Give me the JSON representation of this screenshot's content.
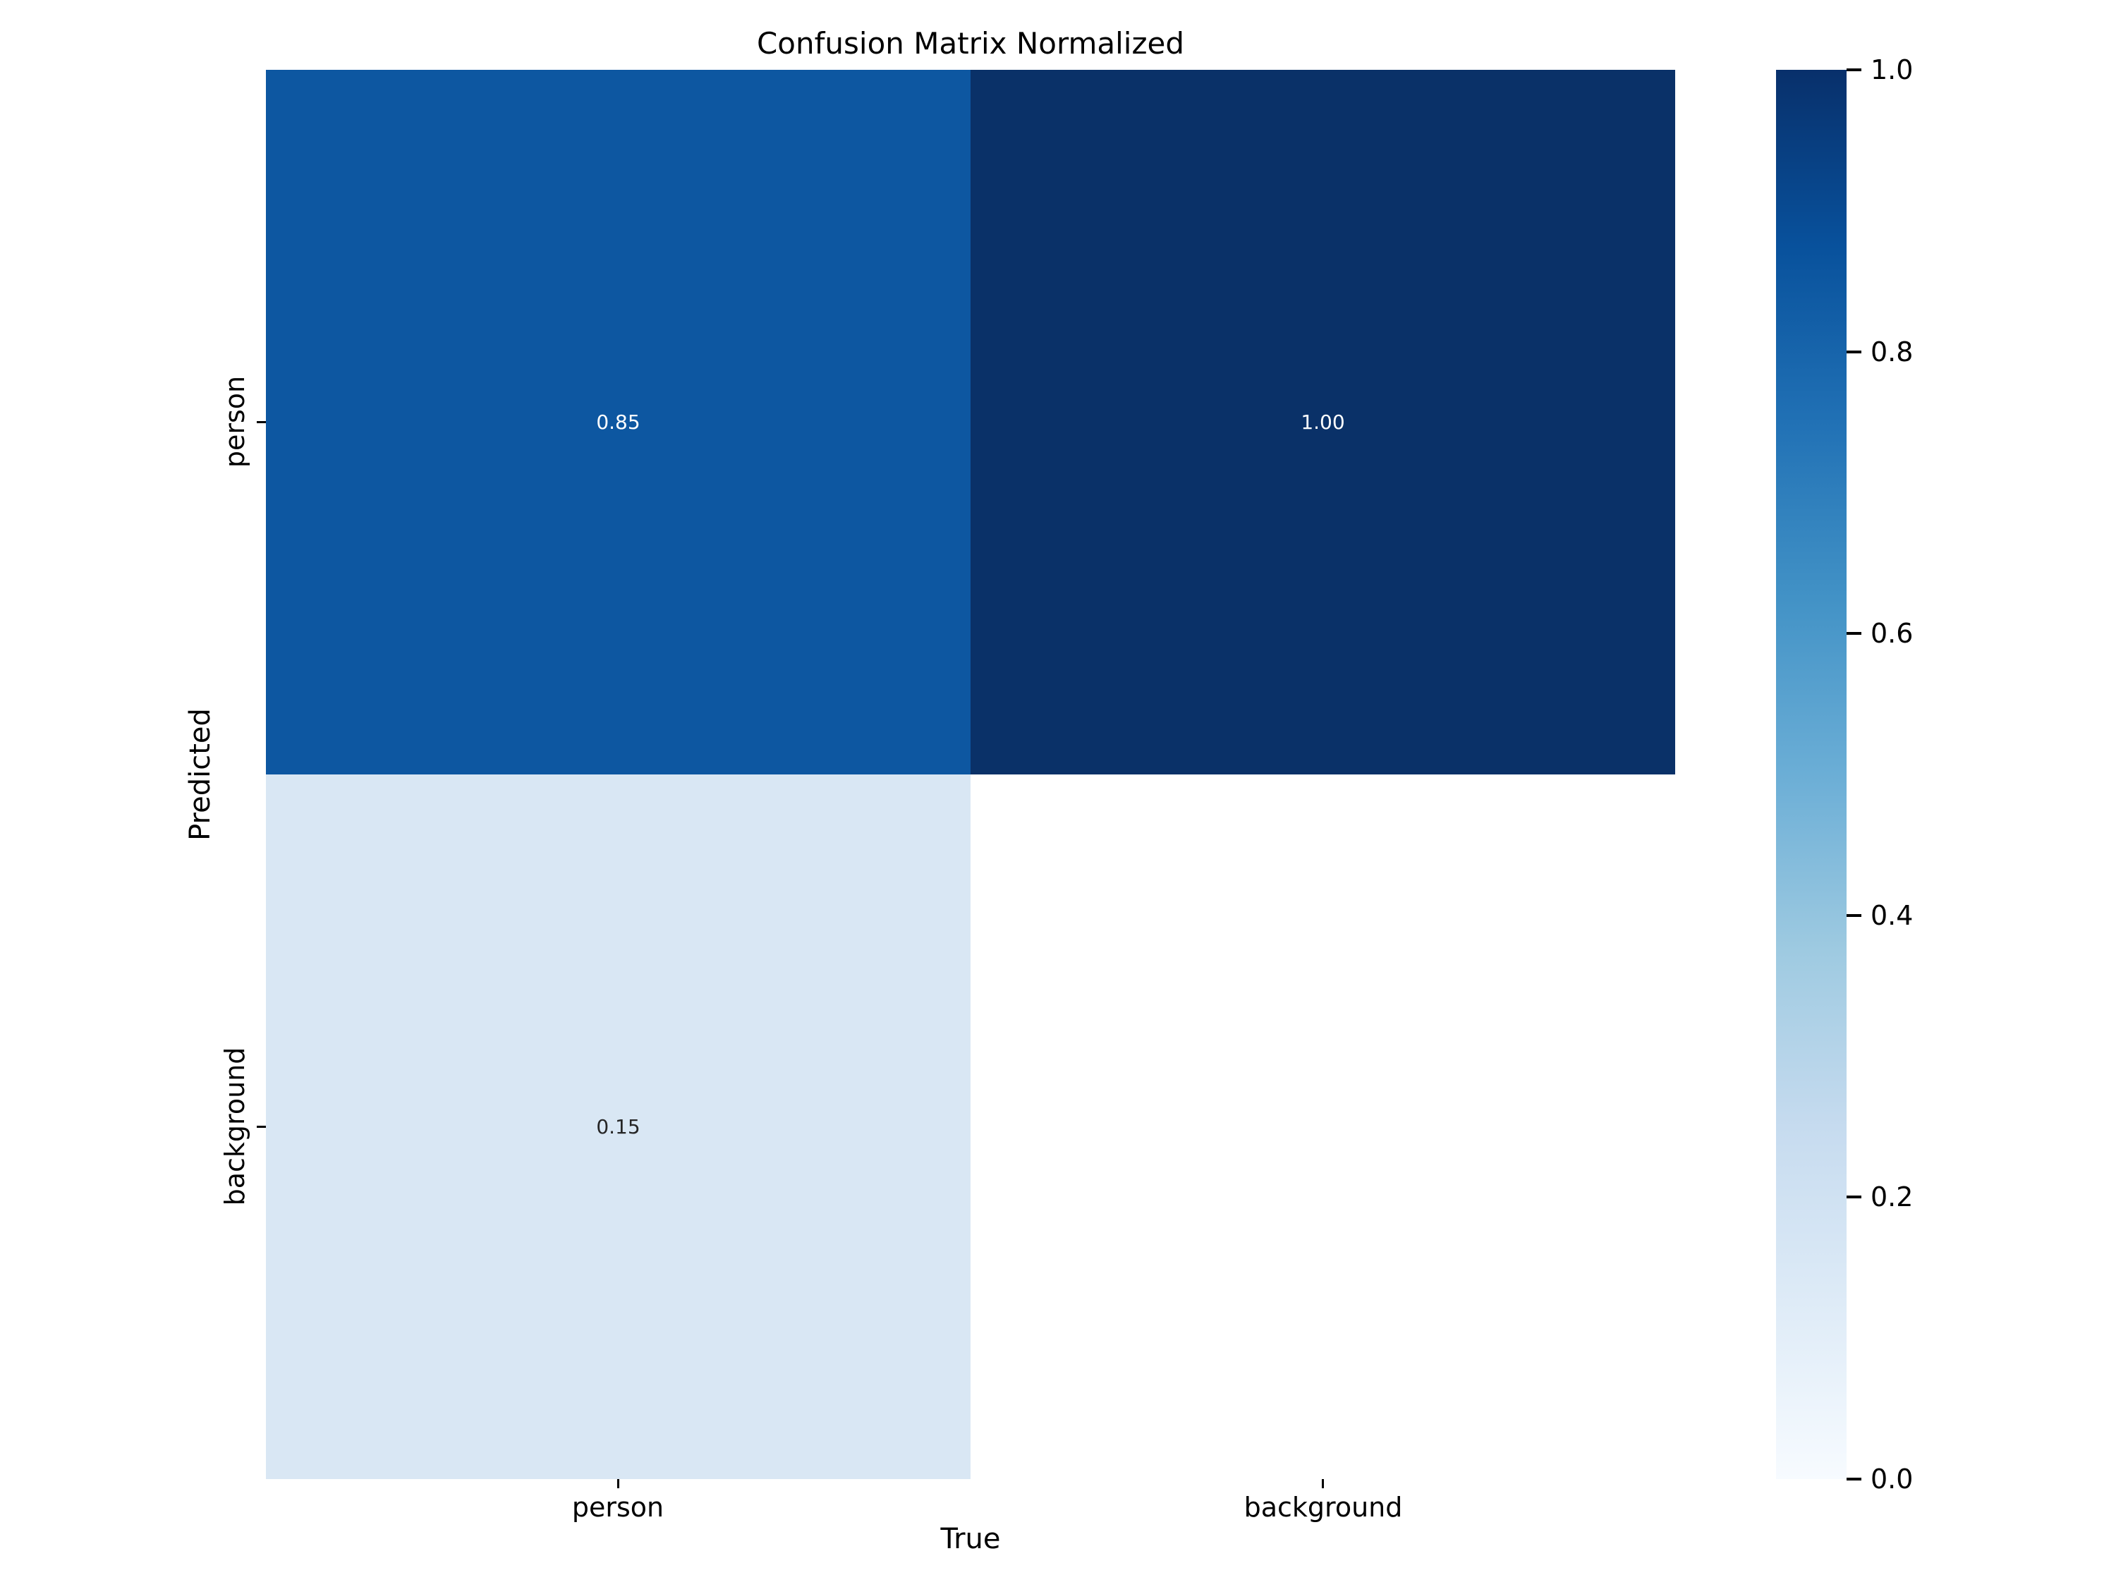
{
  "figure": {
    "background": "#ffffff"
  },
  "chart_data": {
    "type": "heatmap",
    "title": "Confusion Matrix Normalized",
    "xlabel": "True",
    "ylabel": "Predicted",
    "x_categories": [
      "person",
      "background"
    ],
    "y_categories": [
      "person",
      "background"
    ],
    "rows": [
      {
        "y": "person",
        "cells": [
          {
            "x": "person",
            "value": 0.85,
            "label": "0.85",
            "color": "#0d57a1",
            "text_color": "#ffffff"
          },
          {
            "x": "background",
            "value": 1.0,
            "label": "1.00",
            "color": "#0a3168",
            "text_color": "#ffffff"
          }
        ]
      },
      {
        "y": "background",
        "cells": [
          {
            "x": "person",
            "value": 0.15,
            "label": "0.15",
            "color": "#d9e7f4",
            "text_color": "#262626"
          },
          {
            "x": "background",
            "value": null,
            "label": "",
            "color": "#ffffff",
            "text_color": "#262626"
          }
        ]
      }
    ],
    "colormap": "Blues",
    "colormap_stops": [
      "#f7fbff",
      "#deebf7",
      "#c6dbef",
      "#9ecae1",
      "#6baed6",
      "#4292c6",
      "#2171b5",
      "#08519c",
      "#08306b"
    ],
    "value_range": [
      0.0,
      1.0
    ],
    "colorbar_ticks": [
      {
        "value": 1.0,
        "label": "1.0"
      },
      {
        "value": 0.8,
        "label": "0.8"
      },
      {
        "value": 0.6,
        "label": "0.6"
      },
      {
        "value": 0.4,
        "label": "0.4"
      },
      {
        "value": 0.2,
        "label": "0.2"
      },
      {
        "value": 0.0,
        "label": "0.0"
      }
    ],
    "grid": false,
    "legend_position": "right"
  },
  "colors": {
    "text": "#000000",
    "tick": "#000000",
    "annotation_light": "#ffffff",
    "annotation_dark": "#262626"
  }
}
